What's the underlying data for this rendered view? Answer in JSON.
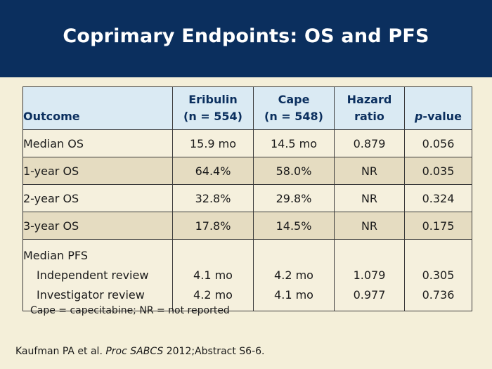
{
  "slide": {
    "title": "Coprimary Endpoints: OS and PFS"
  },
  "table": {
    "headers": {
      "outcome": "Outcome",
      "eribulin_line1": "Eribulin",
      "eribulin_line2": "(n = 554)",
      "cape_line1": "Cape",
      "cape_line2": "(n = 548)",
      "hr_line1": "Hazard",
      "hr_line2": "ratio",
      "p_italic": "p",
      "p_rest": "-value"
    },
    "rows": [
      {
        "outcome": "Median OS",
        "eribulin": "15.9 mo",
        "cape": "14.5 mo",
        "hr": "0.879",
        "p": "0.056"
      },
      {
        "outcome": "1-year OS",
        "eribulin": "64.4%",
        "cape": "58.0%",
        "hr": "NR",
        "p": "0.035"
      },
      {
        "outcome": "2-year OS",
        "eribulin": "32.8%",
        "cape": "29.8%",
        "hr": "NR",
        "p": "0.324"
      },
      {
        "outcome": "3-year OS",
        "eribulin": "17.8%",
        "cape": "14.5%",
        "hr": "NR",
        "p": "0.175"
      }
    ],
    "pfs": {
      "heading": "Median PFS",
      "rows": [
        {
          "outcome": "Independent review",
          "eribulin": "4.1 mo",
          "cape": "4.2 mo",
          "hr": "1.079",
          "p": "0.305"
        },
        {
          "outcome": "Investigator review",
          "eribulin": "4.2 mo",
          "cape": "4.1 mo",
          "hr": "0.977",
          "p": "0.736"
        }
      ]
    }
  },
  "footnote": "Cape = capecitabine; NR = not reported",
  "citation": {
    "before": "Kaufman PA et al. ",
    "journal": "Proc SABCS",
    "after": " 2012;Abstract S6-6."
  }
}
